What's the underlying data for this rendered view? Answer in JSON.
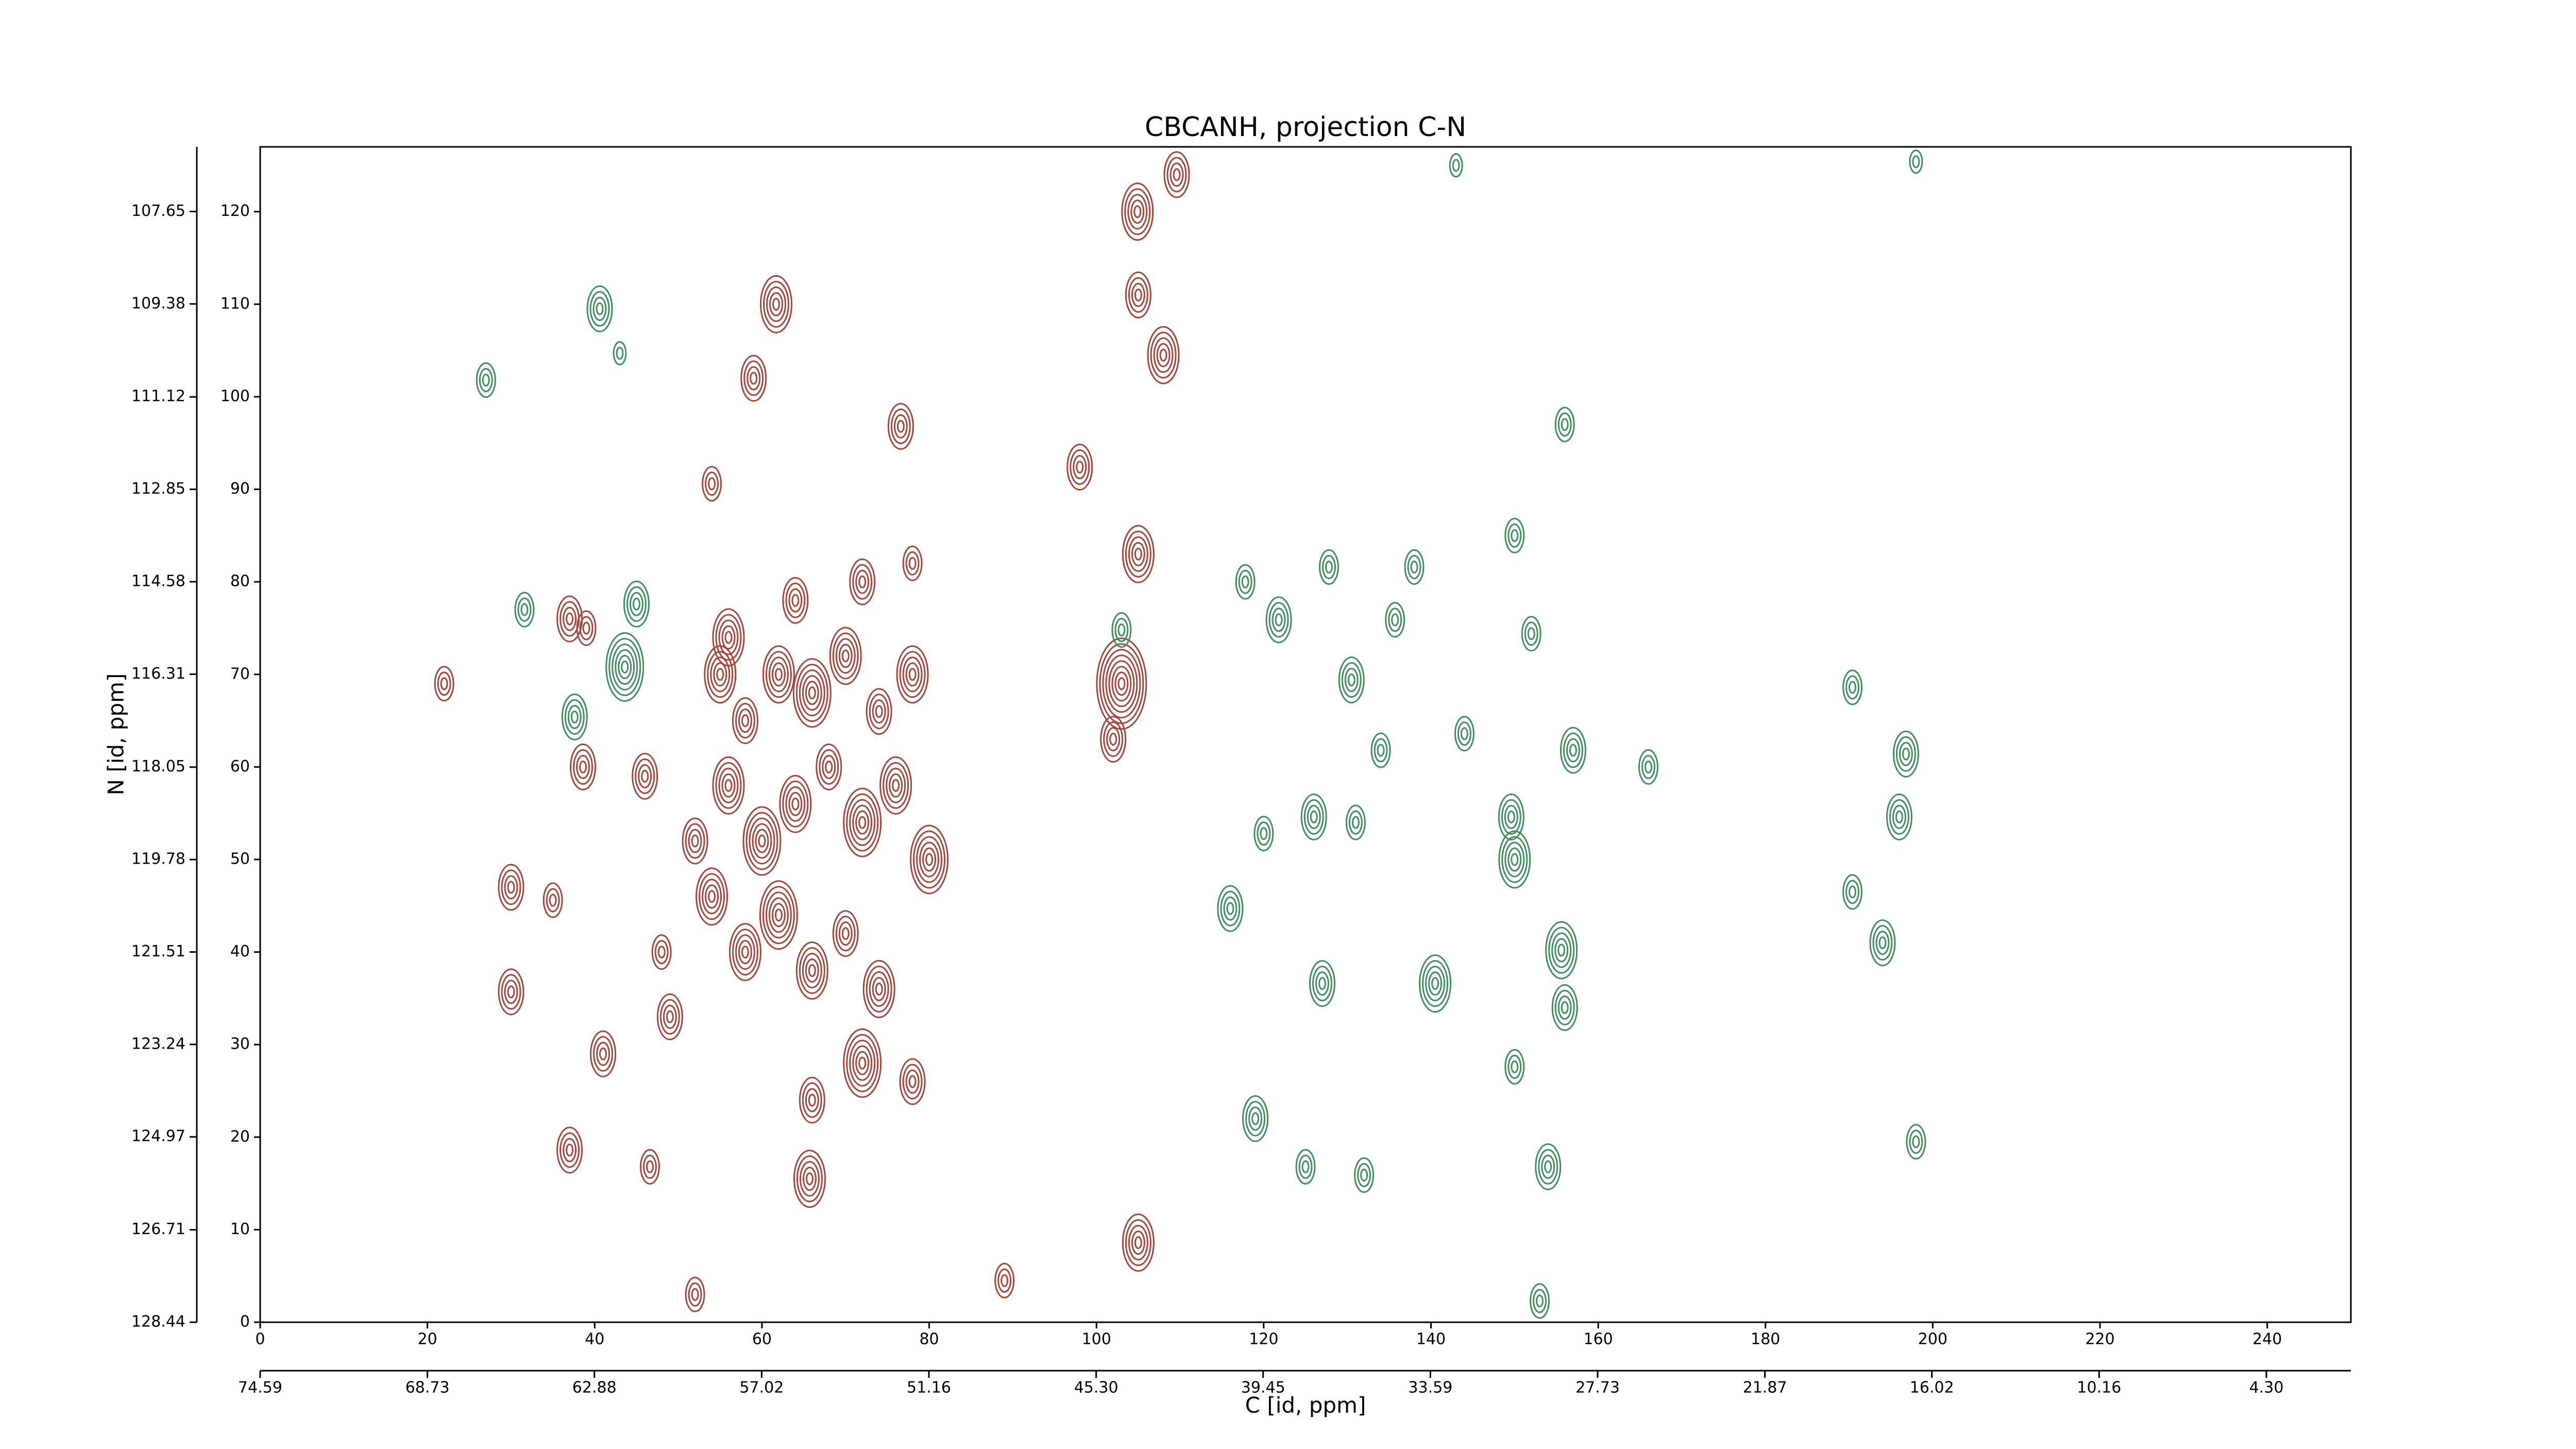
{
  "chart_data": {
    "type": "contour",
    "title": "CBCANH, projection C-N",
    "xlabel": "C [id, ppm]",
    "ylabel": "N [id, ppm]",
    "xlim": [
      0,
      250
    ],
    "xticks": [
      0,
      20,
      40,
      60,
      80,
      100,
      120,
      140,
      160,
      180,
      200,
      220,
      240
    ],
    "ylim": [
      0,
      127
    ],
    "yticks": [
      0,
      10,
      20,
      30,
      40,
      50,
      60,
      70,
      80,
      90,
      100,
      110,
      120
    ],
    "x2lim": [
      74.59,
      1.34
    ],
    "x2ticks": [
      74.59,
      68.73,
      62.88,
      57.02,
      51.16,
      {
        "value": 45.3,
        "label": "45.30"
      },
      39.45,
      33.59,
      27.73,
      21.87,
      16.02,
      10.16,
      {
        "value": 4.3,
        "label": "4.30"
      }
    ],
    "y2lim": [
      128.44,
      106.44
    ],
    "y2ticks": [
      128.44,
      126.71,
      124.97,
      123.24,
      121.51,
      119.78,
      118.05,
      116.31,
      114.58,
      112.85,
      111.12,
      109.38,
      107.65
    ],
    "series": [
      {
        "color": "#a8453b",
        "x": [
          109.6,
          104.9,
          105,
          108,
          61.7,
          59,
          76.6,
          54,
          98,
          105,
          103,
          102,
          30,
          37,
          38.6,
          46,
          35,
          30,
          41,
          37,
          46.6,
          49,
          65.7,
          105,
          89,
          52,
          22,
          39,
          55,
          58,
          62,
          66,
          70,
          74,
          78,
          56,
          60,
          64,
          68,
          72,
          76,
          80,
          54,
          58,
          62,
          66,
          70,
          74,
          72,
          66,
          78,
          56,
          64,
          72,
          78,
          52,
          48
        ],
        "values": [
          124,
          120,
          111,
          104.5,
          110,
          102,
          96.8,
          90.6,
          92.4,
          83,
          69,
          63,
          35.7,
          76,
          60,
          59,
          45.6,
          47,
          29,
          18.6,
          16.8,
          33,
          15.5,
          8.6,
          4.5,
          3,
          69,
          75,
          70,
          65,
          70,
          68,
          72,
          66,
          70,
          58,
          52,
          56,
          60,
          54,
          58,
          50,
          46,
          40,
          44,
          38,
          42,
          36,
          28,
          24,
          26,
          74,
          78,
          80,
          82,
          52,
          40
        ],
        "levels": [
          4,
          5,
          4,
          5,
          5,
          4,
          4,
          3,
          4,
          5,
          8,
          4,
          4,
          4,
          4,
          4,
          3,
          4,
          4,
          4,
          3,
          4,
          5,
          5,
          3,
          3,
          3,
          3,
          5,
          4,
          5,
          6,
          5,
          4,
          5,
          5,
          6,
          5,
          4,
          6,
          5,
          6,
          5,
          5,
          6,
          5,
          4,
          5,
          6,
          4,
          4,
          5,
          4,
          4,
          3,
          4,
          3
        ]
      },
      {
        "color": "#3f8f5c",
        "x": [
          27,
          40.6,
          43,
          31.6,
          43.6,
          37.6,
          45,
          103,
          117.8,
          121.8,
          127.8,
          130.5,
          135.7,
          138,
          126,
          131,
          116,
          120,
          127,
          140.5,
          150,
          149.6,
          155.6,
          156,
          152,
          156,
          150,
          157,
          166,
          150,
          154,
          119,
          153,
          190.4,
          196.8,
          196,
          194,
          190.4,
          198,
          198,
          143,
          125,
          132,
          144,
          134
        ],
        "values": [
          101.8,
          109.5,
          104.7,
          77,
          70.8,
          65.4,
          77.6,
          74.8,
          80,
          75.9,
          81.6,
          69.4,
          75.9,
          81.6,
          54.6,
          54,
          44.7,
          52.8,
          36.6,
          36.6,
          50,
          54.6,
          40.2,
          34,
          74.4,
          97,
          85,
          61.8,
          60,
          27.6,
          16.8,
          22,
          2.3,
          68.6,
          61.4,
          54.6,
          41,
          46.5,
          19.5,
          125.4,
          125,
          16.8,
          15.9,
          63.6,
          61.8
        ],
        "levels": [
          3,
          4,
          2,
          3,
          6,
          4,
          4,
          3,
          3,
          4,
          3,
          4,
          3,
          3,
          4,
          3,
          4,
          3,
          4,
          5,
          5,
          4,
          5,
          4,
          3,
          3,
          3,
          4,
          3,
          3,
          4,
          4,
          3,
          3,
          4,
          4,
          4,
          3,
          3,
          2,
          2,
          3,
          3,
          3,
          3
        ]
      }
    ]
  }
}
